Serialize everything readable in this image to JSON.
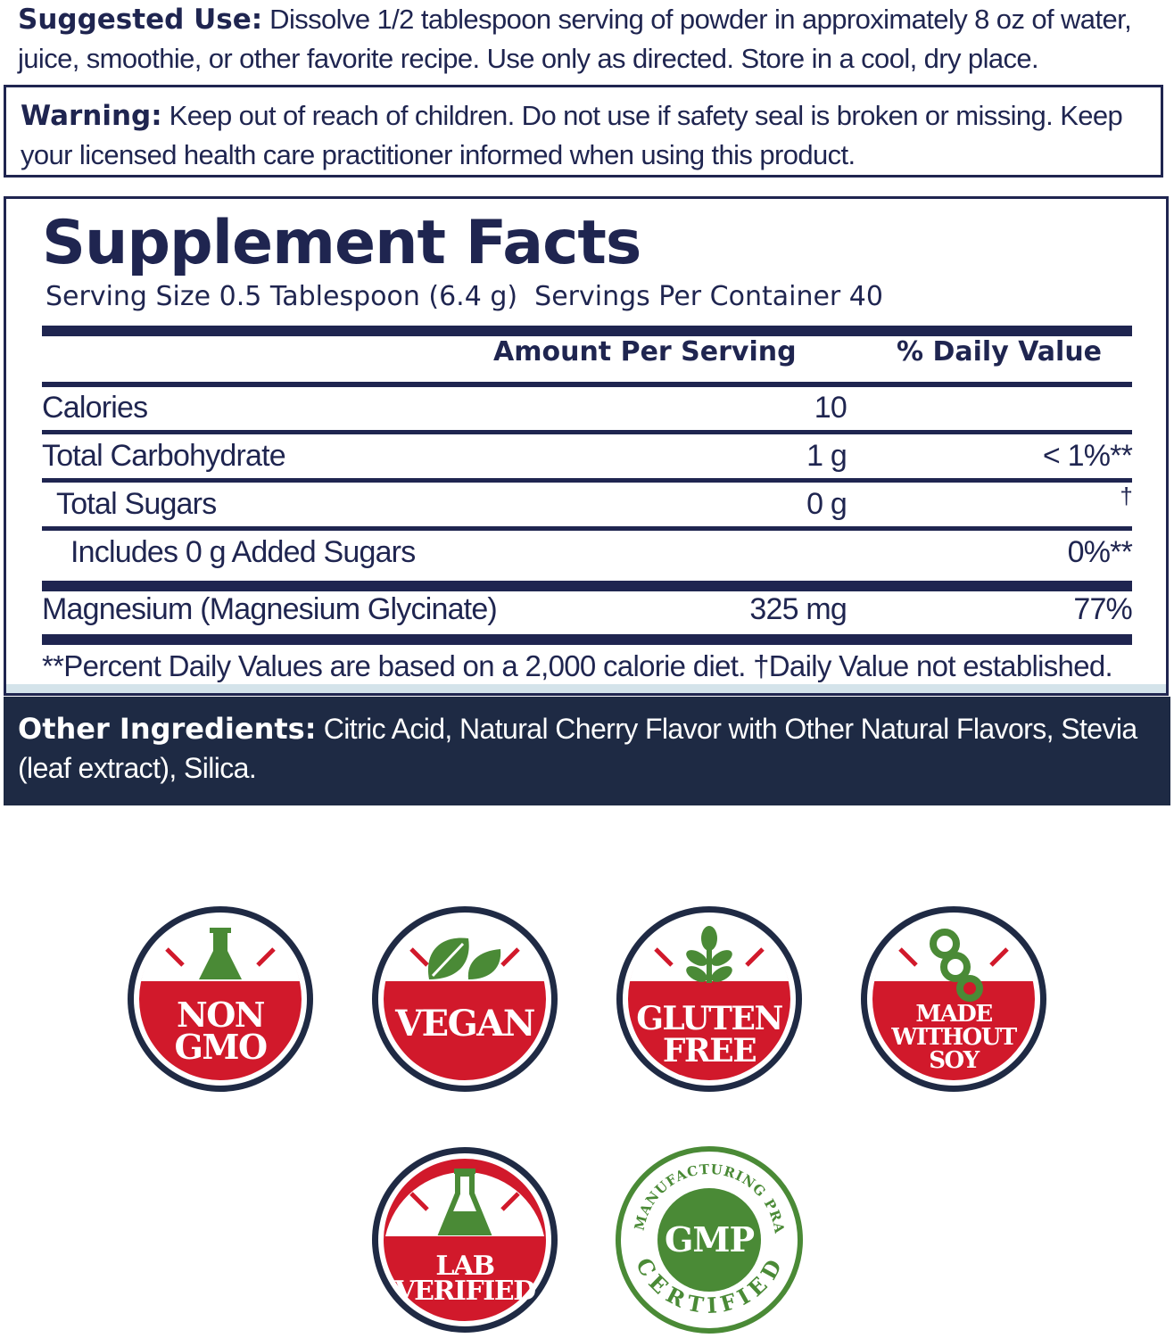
{
  "suggested_use": {
    "label": "Suggested Use:",
    "text": " Dissolve 1/2 tablespoon serving of powder in approximately 8 oz of water, juice, smoothie, or other favorite recipe. Use only as directed. Store in a cool, dry place."
  },
  "warning": {
    "label": "Warning:",
    "text": " Keep out of reach of children. Do not use if safety seal is broken or missing. Keep your licensed health care practitioner informed when using this product."
  },
  "facts": {
    "title": "Supplement Facts",
    "serving_line": "Serving Size 0.5 Tablespoon (6.4 g)  Servings Per Container 40",
    "header_amount": "Amount Per Serving",
    "header_dv": "% Daily Value",
    "rows": [
      {
        "label": "Calories",
        "amount": "10",
        "dv": ""
      },
      {
        "label": "Total Carbohydrate",
        "amount": "1 g",
        "dv": "< 1%**"
      },
      {
        "label": "Total Sugars",
        "amount": "0 g",
        "dv": "†"
      },
      {
        "label": "Includes 0 g Added Sugars",
        "amount": "",
        "dv": "0%**"
      },
      {
        "label": "Magnesium (Magnesium Glycinate)",
        "amount": "325 mg",
        "dv": "77%"
      }
    ],
    "footnote": "**Percent Daily Values are based on a 2,000 calorie diet. †Daily Value not established."
  },
  "other_ingredients": {
    "label": "Other Ingredients:",
    "text": " Citric Acid, Natural Cherry Flavor with Other Natural Flavors, Stevia (leaf extract), Silica."
  },
  "badges": {
    "non_gmo": {
      "line1": "NON",
      "line2": "GMO",
      "icon": "flask-icon"
    },
    "vegan": {
      "line1": "VEGAN",
      "icon": "leaves-icon"
    },
    "gluten_free": {
      "line1": "GLUTEN",
      "line2": "FREE",
      "icon": "wheat-icon"
    },
    "soy": {
      "line1": "MADE",
      "line2": "WITHOUT",
      "line3": "SOY",
      "icon": "soybean-icon"
    },
    "lab": {
      "line1": "LAB",
      "line2": "VERIFIED",
      "icon": "flask-icon"
    },
    "gmp": {
      "center": "GMP",
      "arc_top": "GOOD MANUFACTURING PRACTICE",
      "arc_bottom": "CERTIFIED"
    }
  },
  "colors": {
    "navy": "#1f2550",
    "badge_red": "#d1192b",
    "badge_green": "#4a8a36",
    "ingredients_bg": "#1e2a44"
  }
}
